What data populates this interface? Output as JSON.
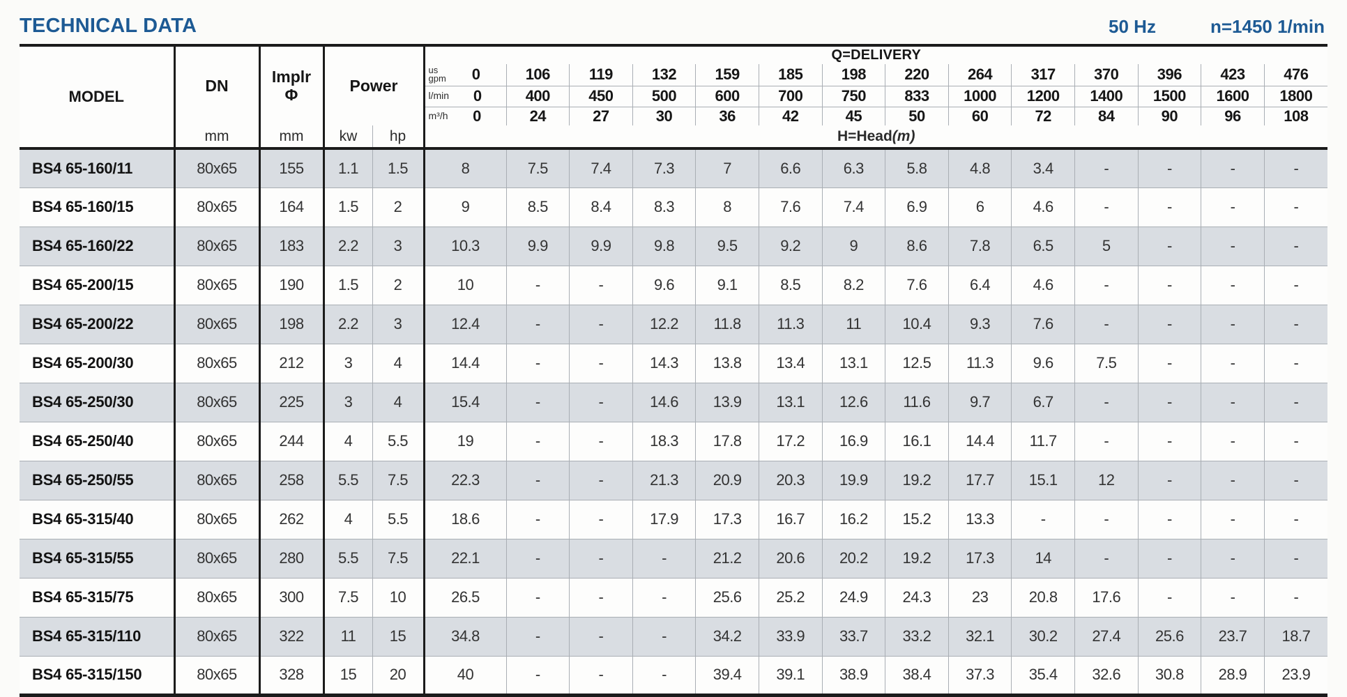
{
  "header": {
    "title": "TECHNICAL DATA",
    "frequency": "50 Hz",
    "speed": "n=1450 1/min"
  },
  "table": {
    "col_headers": {
      "model": "MODEL",
      "dn": "DN",
      "implr_line1": "Implr",
      "implr_line2": "Φ",
      "power": "Power",
      "dn_unit": "mm",
      "implr_unit": "mm",
      "kw": "kw",
      "hp": "hp",
      "delivery": "Q=DELIVERY",
      "head_label": "H=Head",
      "head_unit": "(m)"
    },
    "delivery_rows": [
      {
        "unit_lines": [
          "us",
          "gpm"
        ],
        "values": [
          "0",
          "106",
          "119",
          "132",
          "159",
          "185",
          "198",
          "220",
          "264",
          "317",
          "370",
          "396",
          "423",
          "476"
        ]
      },
      {
        "unit_lines": [
          "l/min"
        ],
        "values": [
          "0",
          "400",
          "450",
          "500",
          "600",
          "700",
          "750",
          "833",
          "1000",
          "1200",
          "1400",
          "1500",
          "1600",
          "1800"
        ]
      },
      {
        "unit_lines": [
          "m³/h"
        ],
        "values": [
          "0",
          "24",
          "27",
          "30",
          "36",
          "42",
          "45",
          "50",
          "60",
          "72",
          "84",
          "90",
          "96",
          "108"
        ]
      }
    ],
    "rows": [
      {
        "model": "BS4 65-160/11",
        "dn": "80x65",
        "implr": "155",
        "kw": "1.1",
        "hp": "1.5",
        "head": [
          "8",
          "7.5",
          "7.4",
          "7.3",
          "7",
          "6.6",
          "6.3",
          "5.8",
          "4.8",
          "3.4",
          "-",
          "-",
          "-",
          "-"
        ]
      },
      {
        "model": "BS4 65-160/15",
        "dn": "80x65",
        "implr": "164",
        "kw": "1.5",
        "hp": "2",
        "head": [
          "9",
          "8.5",
          "8.4",
          "8.3",
          "8",
          "7.6",
          "7.4",
          "6.9",
          "6",
          "4.6",
          "-",
          "-",
          "-",
          "-"
        ]
      },
      {
        "model": "BS4 65-160/22",
        "dn": "80x65",
        "implr": "183",
        "kw": "2.2",
        "hp": "3",
        "head": [
          "10.3",
          "9.9",
          "9.9",
          "9.8",
          "9.5",
          "9.2",
          "9",
          "8.6",
          "7.8",
          "6.5",
          "5",
          "-",
          "-",
          "-"
        ]
      },
      {
        "model": "BS4 65-200/15",
        "dn": "80x65",
        "implr": "190",
        "kw": "1.5",
        "hp": "2",
        "head": [
          "10",
          "-",
          "-",
          "9.6",
          "9.1",
          "8.5",
          "8.2",
          "7.6",
          "6.4",
          "4.6",
          "-",
          "-",
          "-",
          "-"
        ]
      },
      {
        "model": "BS4 65-200/22",
        "dn": "80x65",
        "implr": "198",
        "kw": "2.2",
        "hp": "3",
        "head": [
          "12.4",
          "-",
          "-",
          "12.2",
          "11.8",
          "11.3",
          "11",
          "10.4",
          "9.3",
          "7.6",
          "-",
          "-",
          "-",
          "-"
        ]
      },
      {
        "model": "BS4 65-200/30",
        "dn": "80x65",
        "implr": "212",
        "kw": "3",
        "hp": "4",
        "head": [
          "14.4",
          "-",
          "-",
          "14.3",
          "13.8",
          "13.4",
          "13.1",
          "12.5",
          "11.3",
          "9.6",
          "7.5",
          "-",
          "-",
          "-"
        ]
      },
      {
        "model": "BS4 65-250/30",
        "dn": "80x65",
        "implr": "225",
        "kw": "3",
        "hp": "4",
        "head": [
          "15.4",
          "-",
          "-",
          "14.6",
          "13.9",
          "13.1",
          "12.6",
          "11.6",
          "9.7",
          "6.7",
          "-",
          "-",
          "-",
          "-"
        ]
      },
      {
        "model": "BS4 65-250/40",
        "dn": "80x65",
        "implr": "244",
        "kw": "4",
        "hp": "5.5",
        "head": [
          "19",
          "-",
          "-",
          "18.3",
          "17.8",
          "17.2",
          "16.9",
          "16.1",
          "14.4",
          "11.7",
          "-",
          "-",
          "-",
          "-"
        ]
      },
      {
        "model": "BS4 65-250/55",
        "dn": "80x65",
        "implr": "258",
        "kw": "5.5",
        "hp": "7.5",
        "head": [
          "22.3",
          "-",
          "-",
          "21.3",
          "20.9",
          "20.3",
          "19.9",
          "19.2",
          "17.7",
          "15.1",
          "12",
          "-",
          "-",
          "-"
        ]
      },
      {
        "model": "BS4 65-315/40",
        "dn": "80x65",
        "implr": "262",
        "kw": "4",
        "hp": "5.5",
        "head": [
          "18.6",
          "-",
          "-",
          "17.9",
          "17.3",
          "16.7",
          "16.2",
          "15.2",
          "13.3",
          "-",
          "-",
          "-",
          "-",
          "-"
        ]
      },
      {
        "model": "BS4 65-315/55",
        "dn": "80x65",
        "implr": "280",
        "kw": "5.5",
        "hp": "7.5",
        "head": [
          "22.1",
          "-",
          "-",
          "-",
          "21.2",
          "20.6",
          "20.2",
          "19.2",
          "17.3",
          "14",
          "-",
          "-",
          "-",
          "-"
        ]
      },
      {
        "model": "BS4 65-315/75",
        "dn": "80x65",
        "implr": "300",
        "kw": "7.5",
        "hp": "10",
        "head": [
          "26.5",
          "-",
          "-",
          "-",
          "25.6",
          "25.2",
          "24.9",
          "24.3",
          "23",
          "20.8",
          "17.6",
          "-",
          "-",
          "-"
        ]
      },
      {
        "model": "BS4 65-315/110",
        "dn": "80x65",
        "implr": "322",
        "kw": "11",
        "hp": "15",
        "head": [
          "34.8",
          "-",
          "-",
          "-",
          "34.2",
          "33.9",
          "33.7",
          "33.2",
          "32.1",
          "30.2",
          "27.4",
          "25.6",
          "23.7",
          "18.7"
        ]
      },
      {
        "model": "BS4 65-315/150",
        "dn": "80x65",
        "implr": "328",
        "kw": "15",
        "hp": "20",
        "head": [
          "40",
          "-",
          "-",
          "-",
          "39.4",
          "39.1",
          "38.9",
          "38.4",
          "37.3",
          "35.4",
          "32.6",
          "30.8",
          "28.9",
          "23.9"
        ]
      }
    ]
  },
  "colors": {
    "accent_blue": "#1d5a94",
    "stripe": "#d9dde2",
    "line_dark": "#1b1b1b",
    "line_light": "#a9aeb4"
  }
}
